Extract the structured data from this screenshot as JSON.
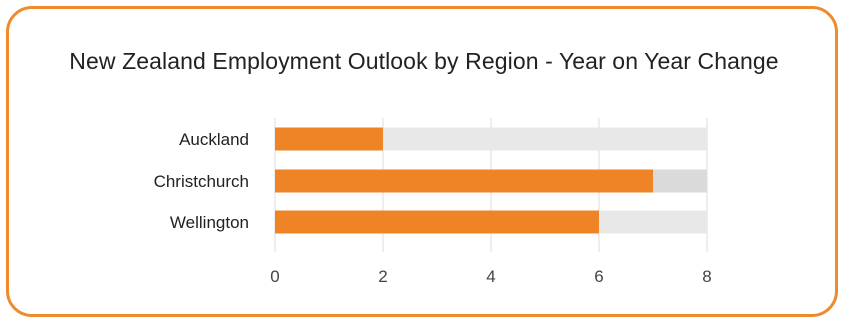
{
  "chart_data": {
    "type": "bar",
    "orientation": "horizontal",
    "title": "New Zealand Employment Outlook by Region - Year on Year Change",
    "categories": [
      "Auckland",
      "Christchurch",
      "Wellington"
    ],
    "series": [
      {
        "values": [
          2,
          7,
          6
        ]
      }
    ],
    "xlim": [
      0,
      8
    ],
    "xticks": [
      "0",
      "2",
      "4",
      "6",
      "8"
    ],
    "grid": true,
    "legend": "none",
    "colors": {
      "bar": "#ef8426",
      "track": "#e8e8e8",
      "track_highlight": "#dadada",
      "grid": "#dddddd",
      "border": "#ef8a2d"
    }
  }
}
